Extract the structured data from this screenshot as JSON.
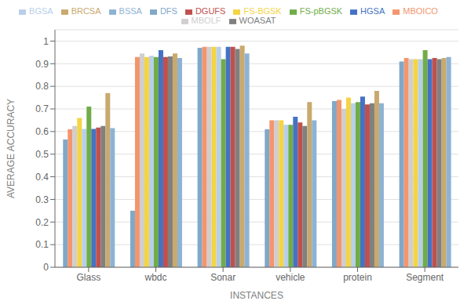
{
  "chart_data": {
    "type": "bar",
    "categories": [
      "Glass",
      "wbdc",
      "Sonar",
      "vehicle",
      "protein",
      "Segment"
    ],
    "series": [
      {
        "name": "DFS",
        "color": "#7fa8c9",
        "values": [
          0.565,
          0.25,
          0.97,
          0.61,
          0.735,
          0.91
        ]
      },
      {
        "name": "MBOICO",
        "color": "#f4956e",
        "values": [
          0.61,
          0.93,
          0.975,
          0.65,
          0.74,
          0.925
        ]
      },
      {
        "name": "MBOLF",
        "color": "#d0cece",
        "values": [
          0.625,
          0.945,
          0.975,
          0.65,
          0.7,
          0.92
        ]
      },
      {
        "name": "FS-BGSK",
        "color": "#f5d444",
        "values": [
          0.66,
          0.93,
          0.975,
          0.65,
          0.75,
          0.92
        ]
      },
      {
        "name": "BGSA",
        "color": "#b8cfe8",
        "values": [
          0.612,
          0.935,
          0.975,
          0.63,
          0.725,
          0.92
        ]
      },
      {
        "name": "FS-pBGSK",
        "color": "#70ad47",
        "values": [
          0.71,
          0.93,
          0.92,
          0.63,
          0.73,
          0.96
        ]
      },
      {
        "name": "HGSA",
        "color": "#4472c4",
        "values": [
          0.612,
          0.96,
          0.975,
          0.665,
          0.755,
          0.92
        ]
      },
      {
        "name": "DGUFS",
        "color": "#c0504d",
        "values": [
          0.618,
          0.93,
          0.975,
          0.64,
          0.72,
          0.925
        ]
      },
      {
        "name": "WOASAT",
        "color": "#808080",
        "values": [
          0.625,
          0.932,
          0.965,
          0.625,
          0.725,
          0.92
        ]
      },
      {
        "name": "BRCSA",
        "color": "#c9a96e",
        "values": [
          0.77,
          0.945,
          0.98,
          0.73,
          0.78,
          0.925
        ]
      },
      {
        "name": "BSSA",
        "color": "#8db3d4",
        "values": [
          0.615,
          0.925,
          0.945,
          0.65,
          0.725,
          0.93
        ]
      }
    ],
    "xlabel": "INSTANCES",
    "ylabel": "AVERAGE ACCURACY",
    "ylim": [
      0,
      1.05
    ],
    "yticks": [
      0,
      0.1,
      0.2,
      0.3,
      0.4,
      0.5,
      0.6,
      0.7,
      0.8,
      0.9,
      1
    ],
    "grid": true,
    "legend": "top"
  }
}
